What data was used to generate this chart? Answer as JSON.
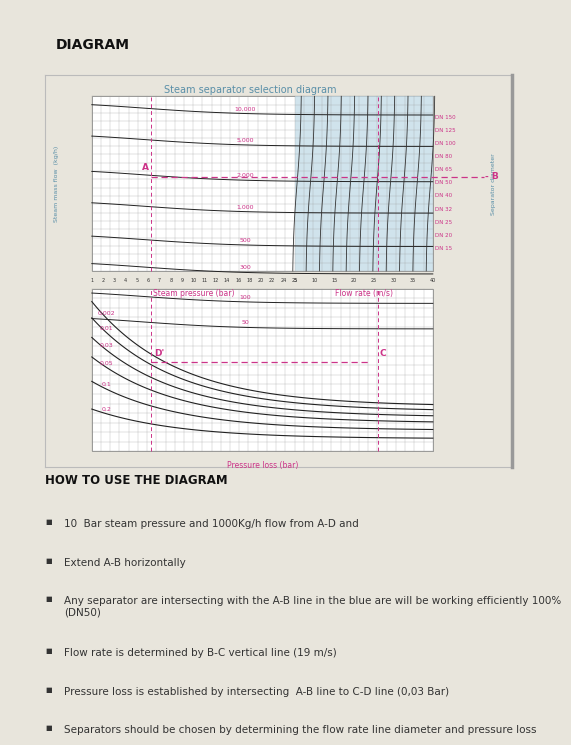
{
  "bg_color": "#e8e5dc",
  "title": "DIAGRAM",
  "title_fontsize": 10,
  "divider_color": "#8ab4c8",
  "diagram_bg": "#f0ede6",
  "chart_bg": "#f8f6f2",
  "chart_title": "Steam separator selection diagram",
  "chart_title_color": "#5a8fa8",
  "upper_chart": {
    "xlabel_left": "Steam pressure (bar)",
    "xlabel_right": "Flow rate (m/s)",
    "ylabel": "Steam mass flow  (kg/h)",
    "ylabel_color": "#5a8fa8",
    "xlabel_color": "#cc3388",
    "xticks_left": [
      "1",
      "2",
      "3",
      "4",
      "5",
      "6",
      "7",
      "8",
      "9",
      "10",
      "11",
      "12",
      "14",
      "16",
      "18",
      "20",
      "22",
      "24",
      "25"
    ],
    "xticks_right": [
      "5",
      "10",
      "15",
      "20",
      "25",
      "30",
      "35",
      "40"
    ],
    "flow_labels": [
      "10,000",
      "5,000",
      "2,000",
      "1,000",
      "500",
      "300",
      "100",
      "50"
    ],
    "dn_labels": [
      "DN 150",
      "DN 125",
      "DN 100",
      "DN 80",
      "DN 65",
      "DN 50",
      "DN 40",
      "DN 32",
      "DN 25",
      "DN 20",
      "DN 15"
    ]
  },
  "lower_chart": {
    "xlabel": "Pressure loss (bar)",
    "xlabel_color": "#cc3388",
    "pressure_labels": [
      "0,002",
      "0,01",
      "0,03",
      "0,05",
      "0,1",
      "0,2"
    ]
  },
  "how_to_title": "HOW TO USE THE DIAGRAM",
  "bullets": [
    "10  Bar steam pressure and 1000Kg/h flow from A-D and",
    "Extend A-B horizontally",
    "Any separator are intersecting with the A-B line in the blue are will be working efficiently 100%\n(DN50)",
    "Flow rate is determined by B-C vertical line (19 m/s)",
    "Pressure loss is established by intersecting  A-B line to C-D line (0,03 Bar)",
    "Separators should be chosen by determining the flow rate line diameter and pressure loss"
  ],
  "bullet_fontsize": 7.5,
  "pink": "#cc3388",
  "dark": "#222222",
  "grid_color": "#999999"
}
